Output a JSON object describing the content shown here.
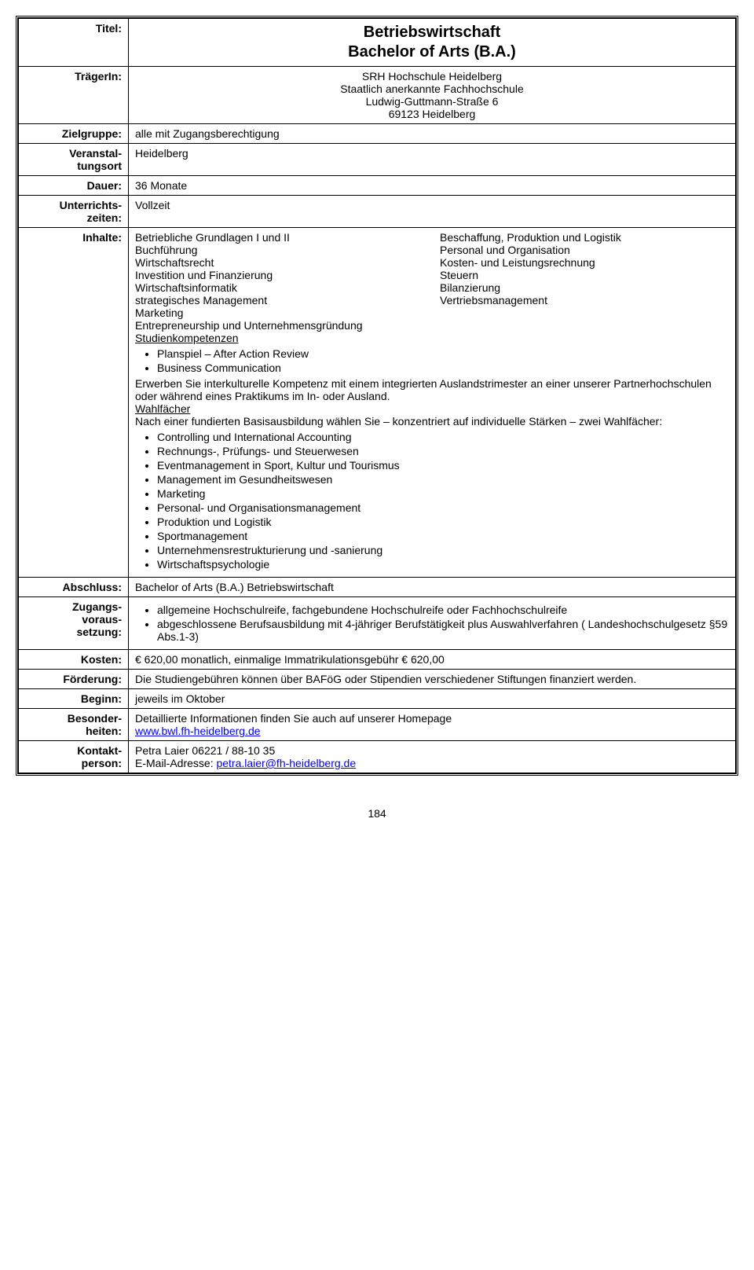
{
  "labels": {
    "title": "Titel:",
    "carrier": "TrägerIn:",
    "target": "Zielgruppe:",
    "venue": "Veranstal-\ntungsort",
    "duration": "Dauer:",
    "times": "Unterrichts-\nzeiten:",
    "content": "Inhalte:",
    "degree": "Abschluss:",
    "requirements": "Zugangs-\nvoraus-\nsetzung:",
    "cost": "Kosten:",
    "funding": "Förderung:",
    "start": "Beginn:",
    "special": "Besonder-\nheiten:",
    "contact": "Kontakt-\nperson:"
  },
  "title": {
    "line1": "Betriebswirtschaft",
    "line2": "Bachelor of Arts (B.A.)"
  },
  "carrier": {
    "l1": "SRH Hochschule Heidelberg",
    "l2": "Staatlich anerkannte Fachhochschule",
    "l3": "Ludwig-Guttmann-Straße 6",
    "l4": "69123 Heidelberg"
  },
  "target": "alle mit Zugangsberechtigung",
  "venue": "Heidelberg",
  "duration": "36 Monate",
  "times": "Vollzeit",
  "content": {
    "left": [
      "Betriebliche Grundlagen I und II",
      "Buchführung",
      "Wirtschaftsrecht",
      "Investition und Finanzierung",
      "Wirtschaftsinformatik",
      "strategisches Management",
      "Marketing"
    ],
    "right": [
      "Beschaffung, Produktion und Logistik",
      "Personal und Organisation",
      "Kosten- und Leistungsrechnung",
      "Steuern",
      "Bilanzierung",
      "Vertriebsmanagement"
    ],
    "after_cols": "Entrepreneurship und Unternehmensgründung",
    "study_heading": "Studienkompetenzen",
    "study_list": [
      "Planspiel – After Action Review",
      "Business Communication"
    ],
    "intercult": "Erwerben Sie interkulturelle Kompetenz mit einem integrierten Auslandstrimester an einer unserer Partnerhochschulen oder während eines Praktikums im In- oder Ausland.",
    "wahl_heading": "Wahlfächer",
    "wahl_intro": "Nach einer fundierten Basisausbildung wählen Sie – konzentriert auf individuelle Stärken – zwei Wahlfächer:",
    "wahl_list": [
      "Controlling und International Accounting",
      "Rechnungs-, Prüfungs- und Steuerwesen",
      "Eventmanagement in Sport, Kultur und Tourismus",
      "Management im Gesundheitswesen",
      "Marketing",
      "Personal- und Organisationsmanagement",
      "Produktion und Logistik",
      "Sportmanagement",
      "Unternehmensrestrukturierung und -sanierung",
      "Wirtschaftspsychologie"
    ]
  },
  "degree": "Bachelor of Arts (B.A.) Betriebswirtschaft",
  "requirements": [
    "allgemeine Hochschulreife, fachgebundene Hochschulreife oder Fachhochschulreife",
    "abgeschlossene Berufsausbildung mit 4-jähriger Berufstätigkeit plus Auswahlverfahren ( Landeshochschulgesetz §59 Abs.1-3)"
  ],
  "cost": "€ 620,00 monatlich, einmalige Immatrikulationsgebühr € 620,00",
  "funding": "Die Studiengebühren können über BAFöG oder Stipendien verschiedener Stiftungen finanziert werden.",
  "start": "jeweils im Oktober",
  "special": {
    "text": "Detaillierte Informationen finden Sie auch auf unserer Homepage",
    "link": "www.bwl.fh-heidelberg.de"
  },
  "contact": {
    "name": "Petra Laier 06221 / 88-10 35",
    "email_label": "E-Mail-Adresse: ",
    "email": "petra.laier@fh-heidelberg.de"
  },
  "page": "184",
  "colors": {
    "link": "#0000ee",
    "border": "#000000",
    "bg": "#ffffff",
    "text": "#000000"
  }
}
